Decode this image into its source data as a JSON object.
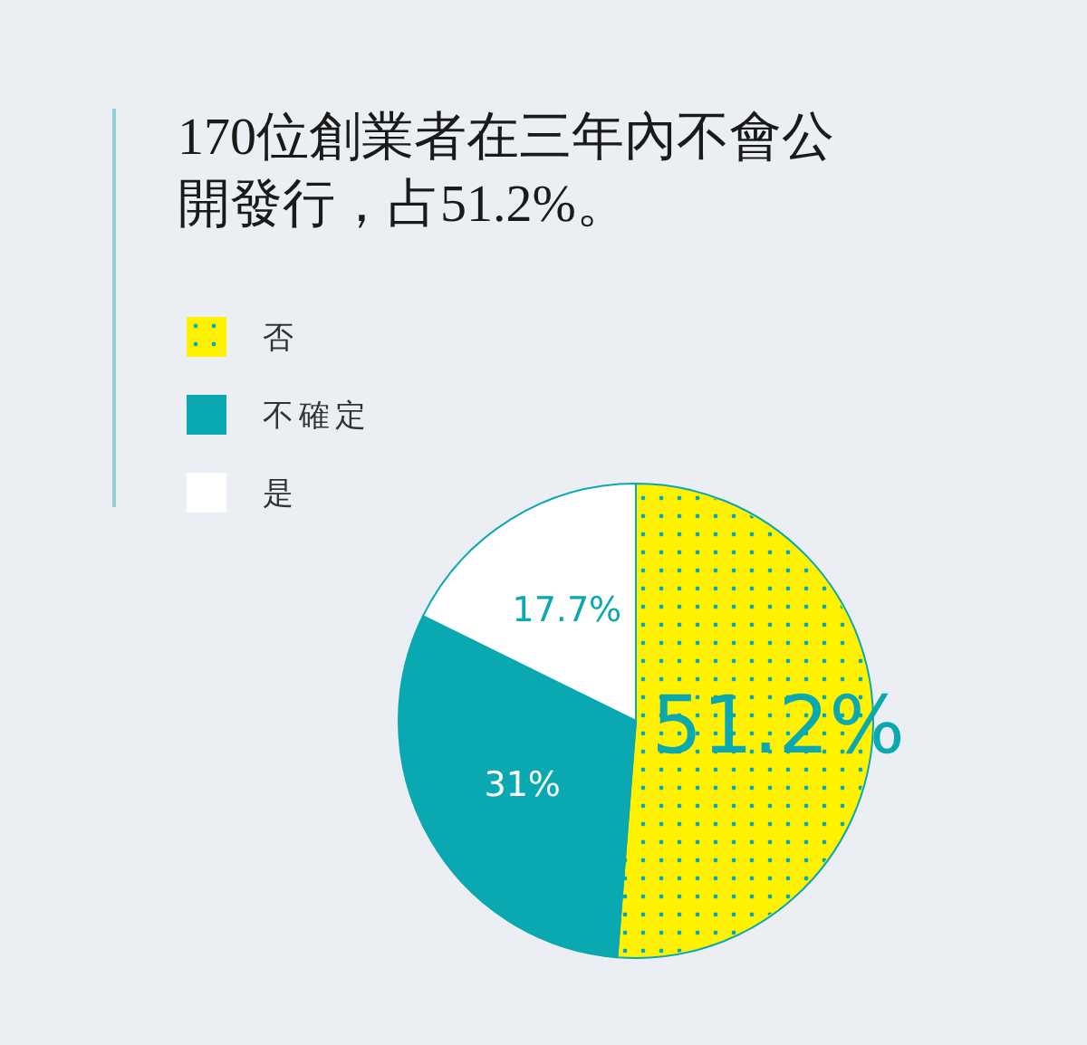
{
  "chart_data": {
    "type": "pie",
    "title": "170位創業者在三年內不會公開發行，占51.2%。",
    "categories": [
      "否",
      "不確定",
      "是"
    ],
    "values": [
      51.2,
      31,
      17.7
    ],
    "colors": [
      "#fff200",
      "#0aa8b0",
      "#ffffff"
    ],
    "value_labels": [
      "51.2%",
      "31%",
      "17.7%"
    ],
    "legend": "top left"
  }
}
